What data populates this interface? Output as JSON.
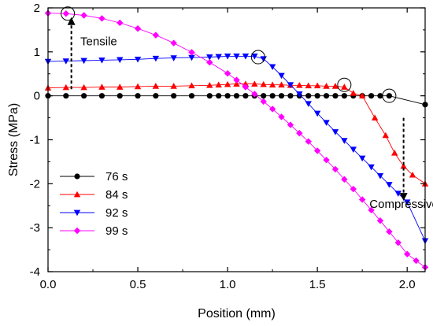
{
  "chart_data": {
    "type": "line",
    "xlabel": "Position (mm)",
    "ylabel": "Stress (MPa)",
    "xlim": [
      0.0,
      2.1
    ],
    "ylim": [
      -4,
      2
    ],
    "x_ticks": [
      0.0,
      0.5,
      1.0,
      1.5,
      2.0
    ],
    "x_tick_labels": [
      "0.0",
      "0.5",
      "1.0",
      "1.5",
      "2.0"
    ],
    "y_ticks": [
      -4,
      -3,
      -2,
      -1,
      0,
      1,
      2
    ],
    "y_tick_labels": [
      "-4",
      "-3",
      "-2",
      "-1",
      "0",
      "1",
      "2"
    ],
    "grid": false,
    "legend_position": "bottom-left",
    "series": [
      {
        "name": "76 s",
        "color": "#000000",
        "marker": "circle",
        "x": [
          0.0,
          0.1,
          0.2,
          0.3,
          0.4,
          0.5,
          0.6,
          0.7,
          0.8,
          0.9,
          0.95,
          1.0,
          1.05,
          1.1,
          1.15,
          1.2,
          1.25,
          1.3,
          1.35,
          1.4,
          1.45,
          1.5,
          1.55,
          1.6,
          1.65,
          1.7,
          1.75,
          1.8,
          1.85,
          1.9,
          2.1
        ],
        "y": [
          0,
          0,
          0,
          0,
          0,
          0,
          0,
          0,
          0,
          0,
          0,
          0,
          0,
          0,
          0,
          0,
          0,
          0,
          0,
          0,
          0,
          0,
          0,
          0,
          0,
          0,
          0,
          0,
          0,
          0,
          -0.2
        ]
      },
      {
        "name": "84 s",
        "color": "#ff0000",
        "marker": "triangle-up",
        "x": [
          0.0,
          0.1,
          0.2,
          0.3,
          0.4,
          0.5,
          0.6,
          0.7,
          0.8,
          0.9,
          0.95,
          1.0,
          1.05,
          1.1,
          1.15,
          1.2,
          1.25,
          1.3,
          1.35,
          1.4,
          1.45,
          1.5,
          1.55,
          1.6,
          1.65,
          1.7,
          1.75,
          1.82,
          1.88,
          1.93,
          1.98,
          2.03,
          2.1
        ],
        "y": [
          0.18,
          0.19,
          0.19,
          0.2,
          0.2,
          0.21,
          0.22,
          0.22,
          0.23,
          0.24,
          0.25,
          0.26,
          0.27,
          0.27,
          0.27,
          0.26,
          0.25,
          0.25,
          0.24,
          0.24,
          0.23,
          0.23,
          0.22,
          0.22,
          0.2,
          0.06,
          0,
          -0.5,
          -0.9,
          -1.3,
          -1.6,
          -1.8,
          -2.0
        ]
      },
      {
        "name": "92 s",
        "color": "#0000ff",
        "marker": "triangle-down",
        "x": [
          0.0,
          0.1,
          0.2,
          0.3,
          0.4,
          0.5,
          0.6,
          0.7,
          0.8,
          0.9,
          0.95,
          1.0,
          1.05,
          1.1,
          1.15,
          1.2,
          1.25,
          1.3,
          1.35,
          1.4,
          1.45,
          1.5,
          1.55,
          1.6,
          1.65,
          1.7,
          1.75,
          1.8,
          1.85,
          1.9,
          1.95,
          2.0,
          2.1
        ],
        "y": [
          0.78,
          0.79,
          0.8,
          0.81,
          0.82,
          0.83,
          0.85,
          0.86,
          0.87,
          0.88,
          0.89,
          0.9,
          0.9,
          0.9,
          0.9,
          0.84,
          0.66,
          0.46,
          0.25,
          0.04,
          -0.18,
          -0.4,
          -0.61,
          -0.82,
          -1.02,
          -1.22,
          -1.42,
          -1.62,
          -1.82,
          -2.02,
          -2.22,
          -2.42,
          -3.3
        ]
      },
      {
        "name": "99 s",
        "color": "#ff00ff",
        "marker": "diamond",
        "x": [
          0.0,
          0.1,
          0.2,
          0.3,
          0.4,
          0.5,
          0.6,
          0.7,
          0.8,
          0.9,
          1.0,
          1.05,
          1.1,
          1.15,
          1.2,
          1.25,
          1.3,
          1.35,
          1.4,
          1.45,
          1.5,
          1.55,
          1.6,
          1.65,
          1.7,
          1.75,
          1.8,
          1.85,
          1.9,
          1.95,
          2.0,
          2.05,
          2.1
        ],
        "y": [
          1.88,
          1.87,
          1.83,
          1.76,
          1.66,
          1.53,
          1.38,
          1.2,
          0.99,
          0.76,
          0.51,
          0.36,
          0.2,
          0.04,
          -0.13,
          -0.3,
          -0.48,
          -0.66,
          -0.85,
          -1.04,
          -1.25,
          -1.46,
          -1.67,
          -1.9,
          -2.12,
          -2.36,
          -2.6,
          -2.84,
          -3.09,
          -3.34,
          -3.6,
          -3.75,
          -3.9
        ]
      }
    ],
    "circled_points": [
      {
        "x": 0.11,
        "y": 1.87
      },
      {
        "x": 1.17,
        "y": 0.88
      },
      {
        "x": 1.65,
        "y": 0.25
      },
      {
        "x": 1.9,
        "y": 0.0
      }
    ],
    "annotations": [
      {
        "text": "Tensile",
        "x": 0.18,
        "y": 1.15,
        "arrow_from": [
          0.13,
          0.15
        ],
        "arrow_to": [
          0.13,
          1.7
        ]
      },
      {
        "text": "Compressive",
        "x": 1.79,
        "y": -2.55,
        "arrow_from": [
          1.98,
          -0.5
        ],
        "arrow_to": [
          1.98,
          -2.3
        ]
      }
    ]
  }
}
